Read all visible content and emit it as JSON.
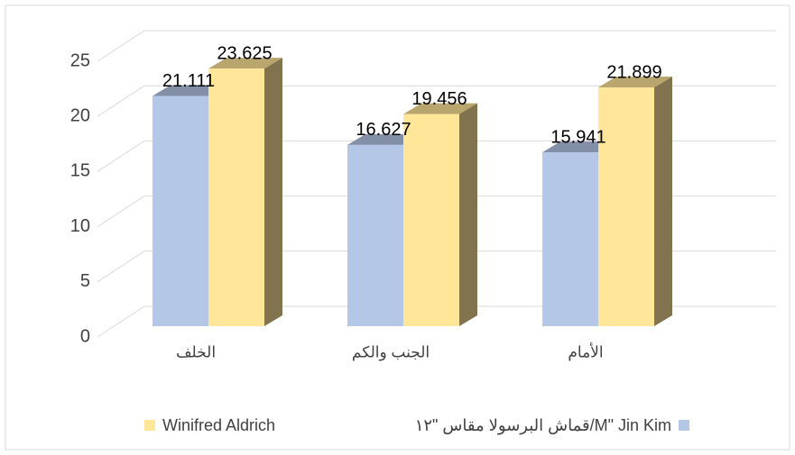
{
  "chart_data": {
    "type": "bar3d",
    "categories": [
      "الخلف",
      "الجنب والكم",
      "الأمام"
    ],
    "series": [
      {
        "name": "قماش البرسولا مقاس \"١٢/M\" Jin Kim",
        "color": "#b4c7e7",
        "values": [
          21.111,
          16.627,
          15.941
        ]
      },
      {
        "name": "Winifred Aldrich",
        "color": "#ffe699",
        "values": [
          23.625,
          19.456,
          21.899
        ]
      }
    ],
    "ylim": [
      0,
      25
    ],
    "yticks": [
      0,
      5,
      10,
      15,
      20,
      25
    ],
    "grid": true,
    "legend": "bottom"
  }
}
